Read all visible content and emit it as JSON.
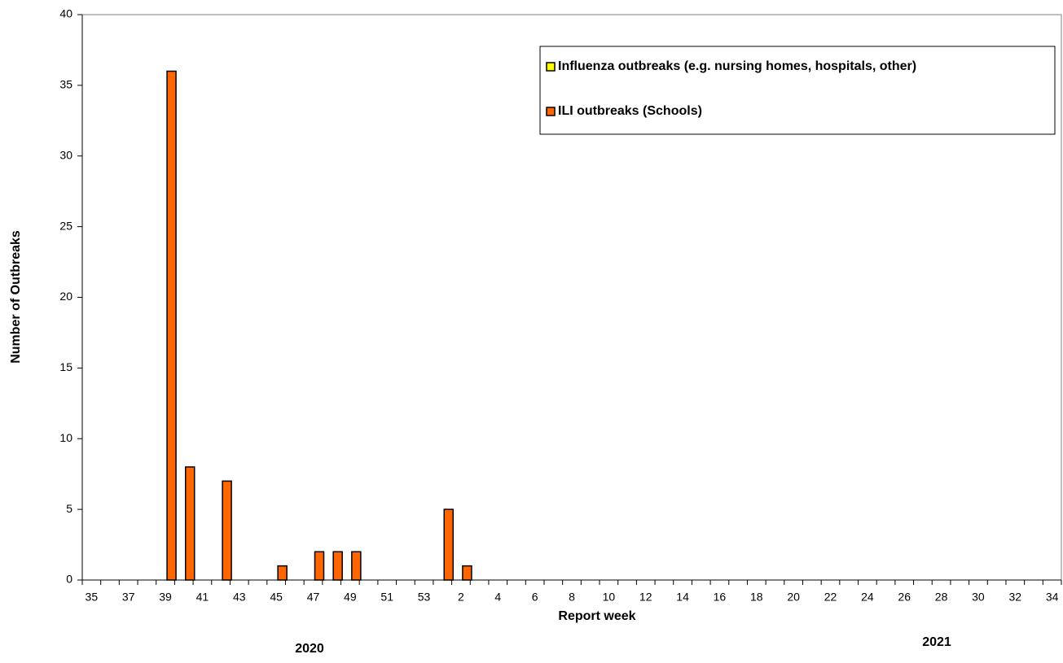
{
  "chart_data": {
    "type": "bar",
    "y_label": "Number of Outbreaks",
    "x_label": "Report week",
    "annotations": [
      "2020",
      "2021"
    ],
    "categories": [
      "35",
      null,
      "37",
      null,
      "39",
      null,
      "41",
      null,
      "43",
      null,
      "45",
      null,
      "47",
      null,
      "49",
      null,
      "51",
      null,
      "53",
      null,
      "2",
      null,
      "4",
      null,
      "6",
      null,
      "8",
      null,
      "10",
      null,
      "12",
      null,
      "14",
      null,
      "16",
      null,
      "18",
      null,
      "20",
      null,
      "22",
      null,
      "24",
      null,
      "26",
      null,
      "28",
      null,
      "30",
      null,
      "32",
      null,
      "34"
    ],
    "series": [
      {
        "name": "Influenza outbreaks (e.g. nursing homes, hospitals, other)",
        "color": "#ffff00",
        "values": [
          0,
          0,
          0,
          0,
          0,
          0,
          0,
          0,
          0,
          0,
          0,
          0,
          0,
          0,
          0,
          0,
          0,
          0,
          0,
          0,
          0,
          0,
          0,
          0,
          0,
          0,
          0,
          0,
          0,
          0,
          0,
          0,
          0,
          0,
          0,
          0,
          0,
          0,
          0,
          0,
          0,
          0,
          0,
          0,
          0,
          0,
          0,
          0,
          0,
          0,
          0,
          0,
          0
        ]
      },
      {
        "name": "ILI outbreaks (Schools)",
        "color": "#ff6600",
        "values": [
          0,
          0,
          0,
          0,
          36,
          8,
          0,
          7,
          0,
          0,
          1,
          0,
          2,
          2,
          2,
          0,
          0,
          0,
          0,
          5,
          1,
          0,
          0,
          0,
          0,
          0,
          0,
          0,
          0,
          0,
          0,
          0,
          0,
          0,
          0,
          0,
          0,
          0,
          0,
          0,
          0,
          0,
          0,
          0,
          0,
          0,
          0,
          0,
          0,
          0,
          0,
          0,
          0
        ]
      }
    ],
    "ylim": [
      0,
      40
    ],
    "yticks": [
      0,
      5,
      10,
      15,
      20,
      25,
      30,
      35,
      40
    ],
    "grid": false,
    "legend": "top-right"
  }
}
